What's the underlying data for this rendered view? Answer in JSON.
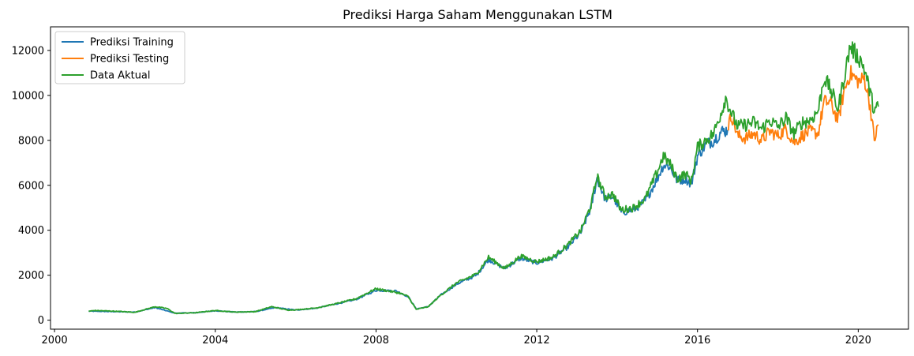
{
  "chart_data": {
    "type": "line",
    "title": "Prediksi Harga Saham Menggunakan LSTM",
    "xlabel": "",
    "ylabel": "",
    "xlim": [
      1999.9,
      2021.25
    ],
    "ylim": [
      -400,
      13050
    ],
    "x_ticks": [
      {
        "value": 2000,
        "label": "2000"
      },
      {
        "value": 2004,
        "label": "2004"
      },
      {
        "value": 2008,
        "label": "2008"
      },
      {
        "value": 2012,
        "label": "2012"
      },
      {
        "value": 2016,
        "label": "2016"
      },
      {
        "value": 2020,
        "label": "2020"
      }
    ],
    "y_ticks": [
      {
        "value": 0,
        "label": "0"
      },
      {
        "value": 2000,
        "label": "2000"
      },
      {
        "value": 4000,
        "label": "4000"
      },
      {
        "value": 6000,
        "label": "6000"
      },
      {
        "value": 8000,
        "label": "8000"
      },
      {
        "value": 10000,
        "label": "10000"
      },
      {
        "value": 12000,
        "label": "12000"
      }
    ],
    "grid": false,
    "legend_position": "top-left",
    "legend": [
      "Prediksi Training",
      "Prediksi Testing",
      "Data Aktual"
    ],
    "series": [
      {
        "name": "Prediksi Training",
        "color": "#1f77b4",
        "x": [
          2000.85,
          2001.5,
          2002.0,
          2002.5,
          2003.0,
          2003.5,
          2004.0,
          2004.5,
          2005.0,
          2005.5,
          2006.0,
          2006.5,
          2007.0,
          2007.5,
          2008.0,
          2008.5,
          2008.8,
          2009.0,
          2009.3,
          2009.6,
          2010.0,
          2010.5,
          2010.8,
          2011.2,
          2011.6,
          2012.0,
          2012.4,
          2012.8,
          2013.1,
          2013.35,
          2013.5,
          2013.7,
          2013.9,
          2014.1,
          2014.4,
          2014.7,
          2015.0,
          2015.15,
          2015.3,
          2015.5,
          2015.7,
          2015.85,
          2016.0,
          2016.2,
          2016.4,
          2016.6,
          2016.75
        ],
        "y": [
          400,
          380,
          360,
          560,
          310,
          330,
          420,
          360,
          380,
          560,
          450,
          530,
          720,
          920,
          1330,
          1300,
          1050,
          500,
          600,
          1100,
          1600,
          2000,
          2700,
          2300,
          2750,
          2550,
          2750,
          3300,
          3900,
          5000,
          6300,
          5400,
          5500,
          4800,
          4900,
          5300,
          6300,
          6900,
          6850,
          6200,
          6300,
          6050,
          7300,
          7800,
          8000,
          8400,
          8450
        ]
      },
      {
        "name": "Prediksi Testing",
        "color": "#ff7f0e",
        "x": [
          2016.75,
          2016.85,
          2017.0,
          2017.2,
          2017.4,
          2017.6,
          2017.8,
          2018.0,
          2018.2,
          2018.4,
          2018.6,
          2018.8,
          2019.0,
          2019.15,
          2019.3,
          2019.5,
          2019.65,
          2019.8,
          2019.95,
          2020.05,
          2020.15,
          2020.3,
          2020.4,
          2020.5
        ],
        "y": [
          8600,
          9100,
          8200,
          8100,
          8300,
          8000,
          8400,
          8200,
          8500,
          7900,
          8200,
          8400,
          8300,
          9700,
          9700,
          8900,
          10200,
          11000,
          10700,
          10600,
          10800,
          9500,
          8000,
          8700
        ]
      },
      {
        "name": "Data Aktual",
        "color": "#2ca02c",
        "x": [
          2000.85,
          2001.0,
          2001.5,
          2002.0,
          2002.5,
          2002.8,
          2003.0,
          2003.5,
          2004.0,
          2004.5,
          2005.0,
          2005.4,
          2005.8,
          2006.0,
          2006.5,
          2007.0,
          2007.5,
          2008.0,
          2008.3,
          2008.6,
          2008.8,
          2009.0,
          2009.3,
          2009.6,
          2010.0,
          2010.5,
          2010.8,
          2011.2,
          2011.6,
          2012.0,
          2012.4,
          2012.8,
          2013.1,
          2013.35,
          2013.5,
          2013.7,
          2013.9,
          2014.1,
          2014.4,
          2014.7,
          2015.0,
          2015.15,
          2015.3,
          2015.5,
          2015.7,
          2015.85,
          2016.0,
          2016.2,
          2016.4,
          2016.6,
          2016.7,
          2016.85,
          2017.0,
          2017.2,
          2017.4,
          2017.6,
          2017.8,
          2018.0,
          2018.2,
          2018.4,
          2018.6,
          2018.8,
          2019.0,
          2019.15,
          2019.3,
          2019.5,
          2019.65,
          2019.8,
          2019.95,
          2020.05,
          2020.15,
          2020.3,
          2020.4,
          2020.5
        ],
        "y": [
          400,
          430,
          400,
          350,
          600,
          520,
          300,
          330,
          430,
          360,
          380,
          600,
          450,
          460,
          540,
          730,
          950,
          1400,
          1300,
          1200,
          1050,
          480,
          600,
          1100,
          1650,
          2050,
          2800,
          2300,
          2850,
          2600,
          2800,
          3400,
          4000,
          5100,
          6400,
          5500,
          5600,
          4900,
          5000,
          5400,
          6600,
          7300,
          7000,
          6300,
          6500,
          6200,
          7700,
          8000,
          8300,
          9300,
          9900,
          9200,
          8600,
          8700,
          8800,
          8500,
          8900,
          8600,
          9000,
          8300,
          8800,
          8900,
          9300,
          10800,
          10300,
          9400,
          10800,
          12200,
          11800,
          11600,
          11200,
          10100,
          9300,
          9500
        ]
      }
    ]
  }
}
